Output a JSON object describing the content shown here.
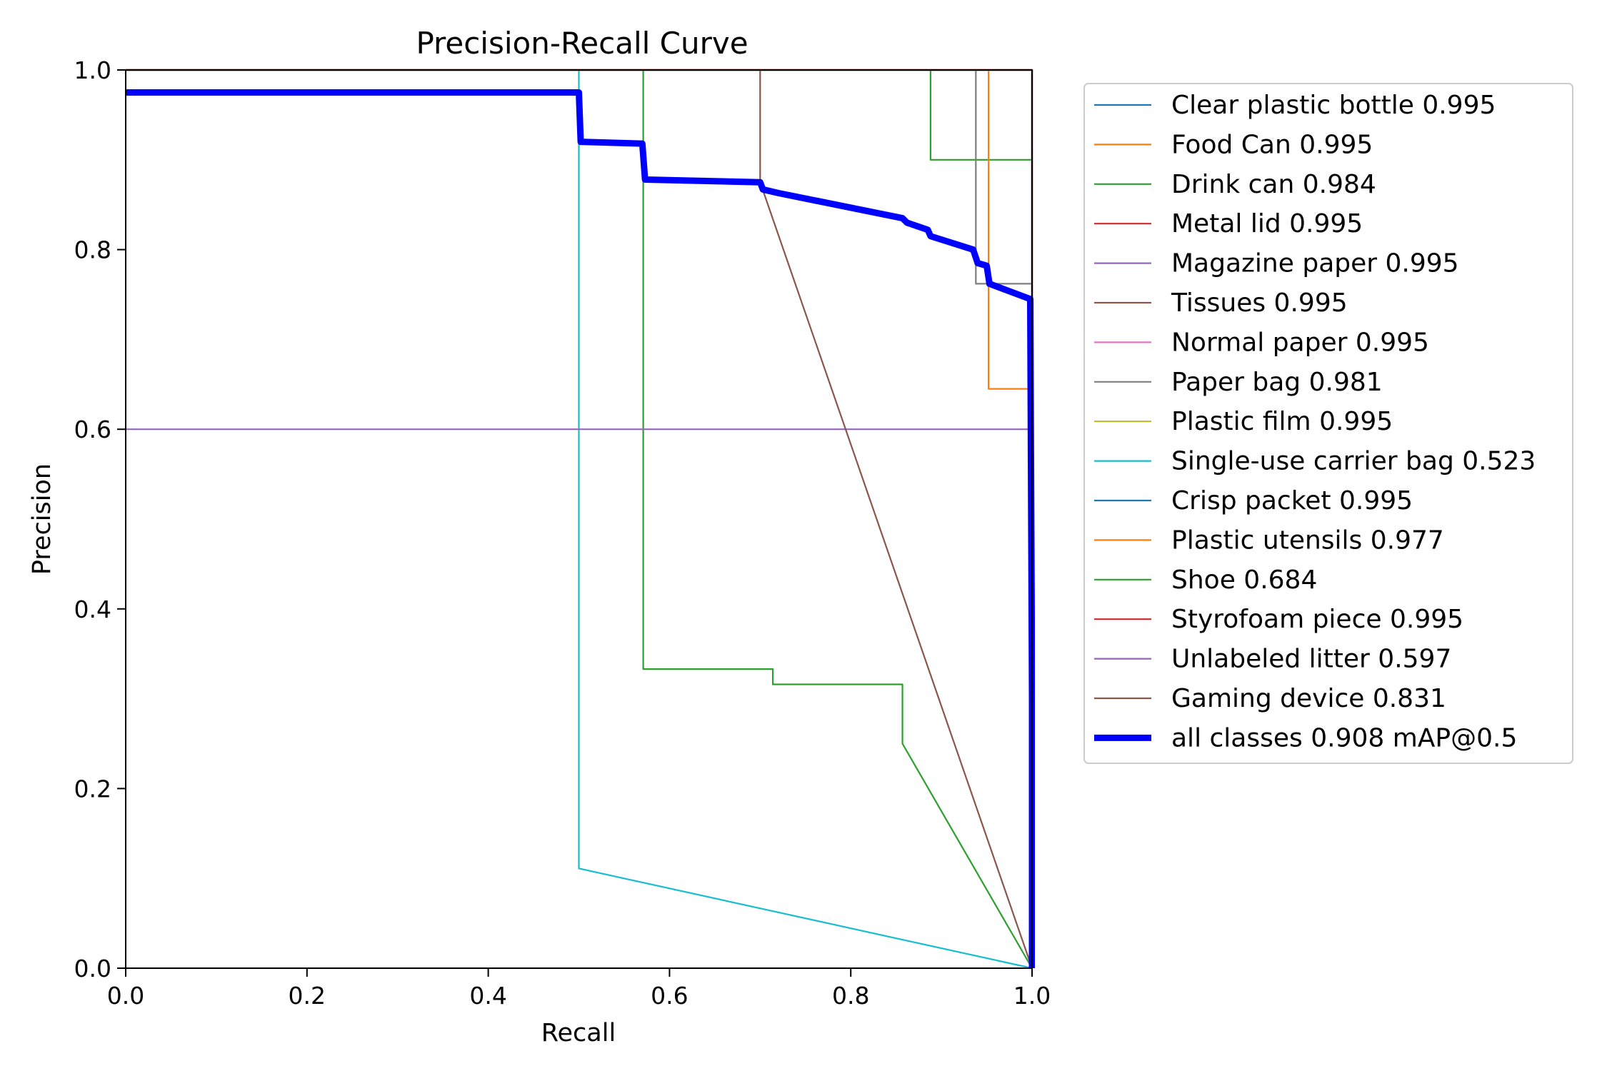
{
  "chart_data": {
    "type": "line",
    "title": "Precision-Recall Curve",
    "xlabel": "Recall",
    "ylabel": "Precision",
    "xlim": [
      0,
      1
    ],
    "ylim": [
      0,
      1
    ],
    "xticks": [
      "0.0",
      "0.2",
      "0.4",
      "0.6",
      "0.8",
      "1.0"
    ],
    "yticks": [
      "0.0",
      "0.2",
      "0.4",
      "0.6",
      "0.8",
      "1.0"
    ],
    "grid": false,
    "legend_position": "outside-right",
    "series": [
      {
        "name": "Clear plastic bottle 0.995",
        "color": "#1f77b4",
        "points": [
          [
            0,
            1
          ],
          [
            1,
            1
          ],
          [
            1,
            0
          ]
        ]
      },
      {
        "name": "Food Can 0.995",
        "color": "#ff7f0e",
        "points": [
          [
            0,
            1
          ],
          [
            1,
            1
          ],
          [
            1,
            0
          ]
        ]
      },
      {
        "name": "Drink can 0.984",
        "color": "#2ca02c",
        "points": [
          [
            0,
            1
          ],
          [
            0.888,
            1
          ],
          [
            0.888,
            0.9
          ],
          [
            1,
            0.9
          ],
          [
            1,
            0
          ]
        ]
      },
      {
        "name": "Metal lid 0.995",
        "color": "#d62728",
        "points": [
          [
            0,
            1
          ],
          [
            1,
            1
          ],
          [
            1,
            0
          ]
        ]
      },
      {
        "name": "Magazine paper 0.995",
        "color": "#9467bd",
        "points": [
          [
            0,
            1
          ],
          [
            1,
            1
          ],
          [
            1,
            0
          ]
        ]
      },
      {
        "name": "Tissues 0.995",
        "color": "#8c564b",
        "points": [
          [
            0,
            1
          ],
          [
            1,
            1
          ],
          [
            1,
            0
          ]
        ]
      },
      {
        "name": "Normal paper 0.995",
        "color": "#e377c2",
        "points": [
          [
            0,
            1
          ],
          [
            1,
            1
          ],
          [
            1,
            0
          ]
        ]
      },
      {
        "name": "Paper bag 0.981",
        "color": "#7f7f7f",
        "points": [
          [
            0,
            1
          ],
          [
            0.938,
            1
          ],
          [
            0.938,
            0.762
          ],
          [
            1,
            0.762
          ],
          [
            1,
            0
          ]
        ]
      },
      {
        "name": "Plastic film 0.995",
        "color": "#bcbd22",
        "points": [
          [
            0,
            1
          ],
          [
            1,
            1
          ],
          [
            1,
            0
          ]
        ]
      },
      {
        "name": "Single-use carrier bag 0.523",
        "color": "#17becf",
        "points": [
          [
            0,
            1
          ],
          [
            0.5,
            1
          ],
          [
            0.5,
            0.111
          ],
          [
            1,
            0
          ]
        ]
      },
      {
        "name": "Crisp packet 0.995",
        "color": "#1f77b4",
        "points": [
          [
            0,
            1
          ],
          [
            1,
            1
          ],
          [
            1,
            0
          ]
        ]
      },
      {
        "name": "Plastic utensils 0.977",
        "color": "#ff7f0e",
        "points": [
          [
            0,
            1
          ],
          [
            0.952,
            1
          ],
          [
            0.952,
            0.645
          ],
          [
            1,
            0.645
          ],
          [
            1,
            0
          ]
        ]
      },
      {
        "name": "Shoe 0.684",
        "color": "#2ca02c",
        "points": [
          [
            0,
            1
          ],
          [
            0.571,
            1
          ],
          [
            0.571,
            0.333
          ],
          [
            0.714,
            0.333
          ],
          [
            0.714,
            0.316
          ],
          [
            0.857,
            0.316
          ],
          [
            0.857,
            0.25
          ],
          [
            1,
            0
          ]
        ]
      },
      {
        "name": "Styrofoam piece 0.995",
        "color": "#d62728",
        "points": [
          [
            0,
            1
          ],
          [
            1,
            1
          ],
          [
            1,
            0
          ]
        ]
      },
      {
        "name": "Unlabeled litter 0.597",
        "color": "#9467bd",
        "points": [
          [
            0,
            0.6
          ],
          [
            1,
            0.6
          ],
          [
            1,
            0
          ]
        ]
      },
      {
        "name": "Gaming device 0.831",
        "color": "#8c564b",
        "points": [
          [
            0,
            1
          ],
          [
            0.7,
            1
          ],
          [
            0.7,
            0.875
          ],
          [
            1,
            0
          ]
        ]
      },
      {
        "name": "all classes 0.908 mAP@0.5",
        "color": "#0000ff",
        "bold": true,
        "points": [
          [
            0,
            0.975
          ],
          [
            0.5,
            0.975
          ],
          [
            0.502,
            0.92
          ],
          [
            0.57,
            0.918
          ],
          [
            0.573,
            0.878
          ],
          [
            0.7,
            0.875
          ],
          [
            0.703,
            0.867
          ],
          [
            0.72,
            0.863
          ],
          [
            0.857,
            0.835
          ],
          [
            0.862,
            0.83
          ],
          [
            0.885,
            0.822
          ],
          [
            0.888,
            0.815
          ],
          [
            0.935,
            0.8
          ],
          [
            0.94,
            0.785
          ],
          [
            0.95,
            0.782
          ],
          [
            0.953,
            0.762
          ],
          [
            0.998,
            0.745
          ],
          [
            1,
            0.3
          ],
          [
            1,
            0
          ]
        ]
      }
    ]
  }
}
